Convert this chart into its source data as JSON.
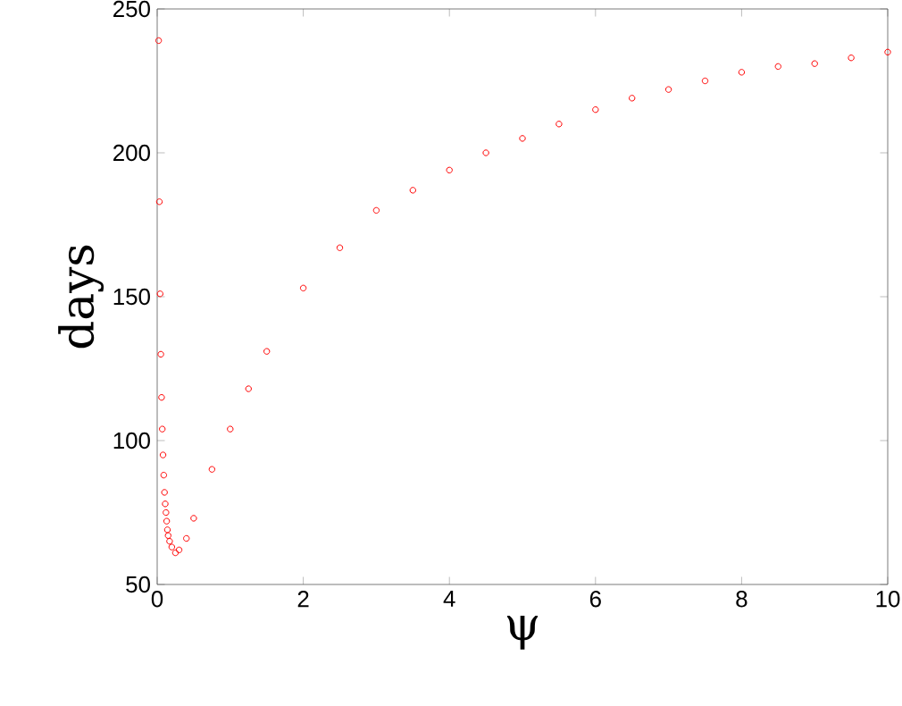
{
  "chart_data": {
    "type": "scatter",
    "xlabel": "ψ",
    "ylabel": "days",
    "marker": "circle",
    "xlim": [
      0,
      10
    ],
    "ylim": [
      50,
      250
    ],
    "xticks": [
      0,
      2,
      4,
      6,
      8,
      10
    ],
    "yticks": [
      50,
      100,
      150,
      200,
      250
    ],
    "series": [
      {
        "color": "#ff0000",
        "x": [
          0.02,
          0.03,
          0.04,
          0.05,
          0.06,
          0.07,
          0.08,
          0.09,
          0.1,
          0.11,
          0.12,
          0.13,
          0.14,
          0.15,
          0.17,
          0.2,
          0.25,
          0.3,
          0.4,
          0.5,
          0.75,
          1,
          1.25,
          1.5,
          2,
          2.5,
          3,
          3.5,
          4,
          4.5,
          5,
          5.5,
          6,
          6.5,
          7,
          7.5,
          8,
          8.5,
          9,
          9.5,
          10
        ],
        "values": [
          239,
          183,
          151,
          130,
          115,
          104,
          95,
          88,
          82,
          78,
          75,
          72,
          69,
          67,
          65,
          63,
          61,
          62,
          66,
          73,
          90,
          104,
          118,
          131,
          153,
          167,
          180,
          187,
          194,
          200,
          205,
          210,
          215,
          219,
          222,
          225,
          228,
          230,
          231,
          233,
          235
        ]
      }
    ]
  }
}
